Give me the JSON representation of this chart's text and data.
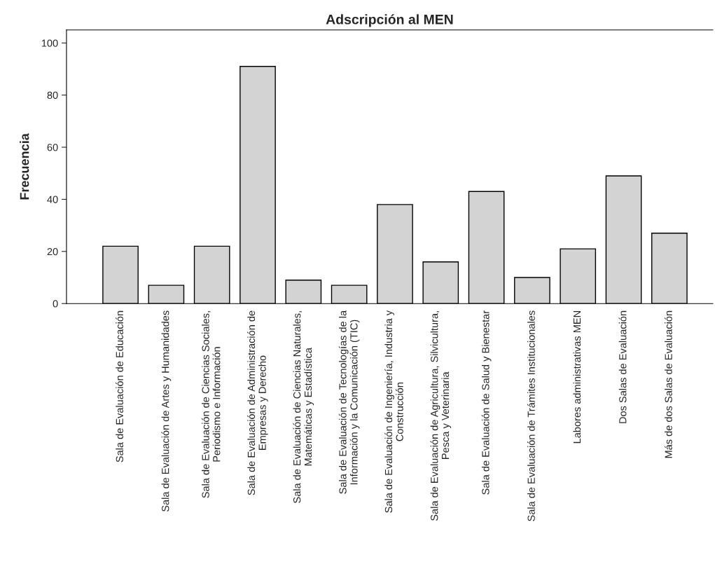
{
  "chart_data": {
    "type": "bar",
    "title": "Adscripción al MEN",
    "ylabel": "Frecuencia",
    "categories": [
      "Sala de Evaluación de Educación",
      "Sala de Evaluación de Artes y Humanidades",
      "Sala de Evaluación de Ciencias Sociales,\nPeriodismo e Información",
      "Sala de Evaluación de Administración de\nEmpresas y Derecho",
      "Sala de Evaluación de Ciencias Naturales,\nMatemáticas y Estadística",
      "Sala de Evaluación de Tecnologías de la\nInformación y la Comunicación (TIC)",
      "Sala de Evaluación de Ingeniería, Industria y\nConstrucción",
      "Sala de Evaluación de Agricultura, Silvicultura,\nPesca y Veterinaria",
      "Sala de Evaluación de Salud y Bienestar",
      "Sala de Evaluación de Trámites Institucionales",
      "Labores administrativas MEN",
      "Dos Salas de Evaluación",
      "Más de dos Salas de Evaluación"
    ],
    "values": [
      22,
      7,
      22,
      91,
      9,
      7,
      38,
      16,
      43,
      10,
      21,
      49,
      27
    ],
    "color": "#d3d3d3",
    "ylim": [
      0,
      105
    ],
    "yticks": [
      0,
      20,
      40,
      60,
      80,
      100
    ],
    "grid": false,
    "legend": false
  }
}
